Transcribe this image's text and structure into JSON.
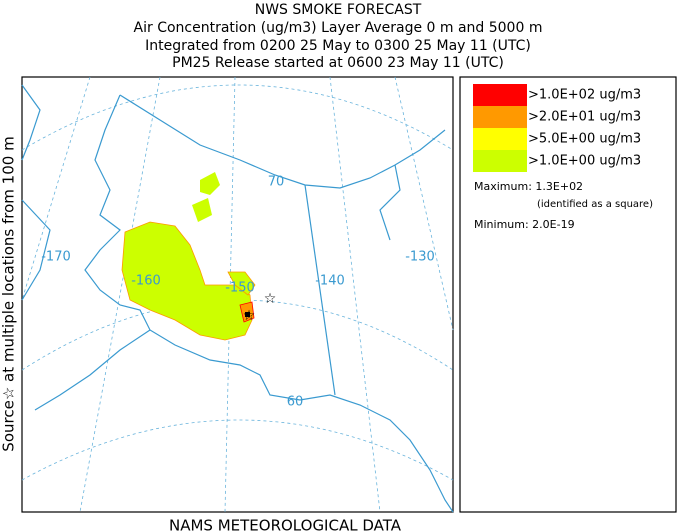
{
  "header": {
    "lines": [
      "NWS SMOKE FORECAST",
      "Air Concentration (ug/m3) Layer Average    0 m and  5000 m",
      "Integrated from 0200 25 May to 0300 25 May 11 (UTC)",
      "PM25 Release started at 0600 23 May 11 (UTC)"
    ]
  },
  "side_label": "Source☆ at multiple locations  from  100 m",
  "map": {
    "grid_labels": [
      "-170",
      "-160",
      "-150",
      "-140",
      "-130",
      "70",
      "60"
    ]
  },
  "legend": {
    "entries": [
      {
        "label": ">1.0E+02 ug/m3",
        "color": "#ff0000"
      },
      {
        "label": ">2.0E+01 ug/m3",
        "color": "#ff9900"
      },
      {
        "label": ">5.0E+00 ug/m3",
        "color": "#ffff00"
      },
      {
        "label": ">1.0E+00 ug/m3",
        "color": "#ccff00"
      }
    ],
    "maximum": "Maximum: 1.3E+02",
    "maximum_note": "(identified as a square)",
    "minimum": "Minimum: 2.0E-19"
  },
  "footer": "NAMS METEOROLOGICAL DATA"
}
